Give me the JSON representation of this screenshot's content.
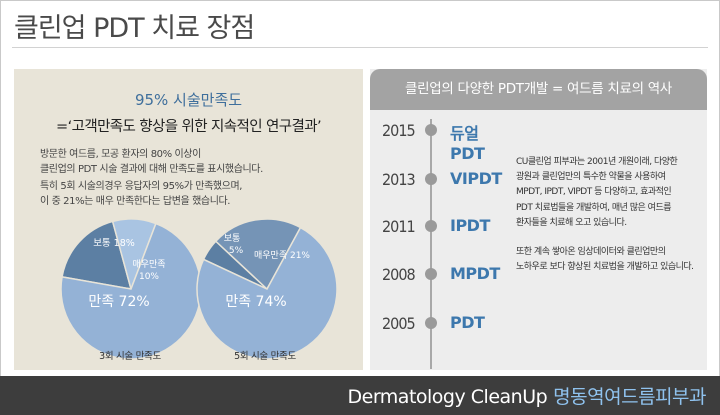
{
  "page": {
    "title": "클린업 PDT 치료 장점"
  },
  "satisfaction": {
    "title": "95% 시술만족도",
    "subtitle": "=‘고객만족도 향상을 위한 지속적인 연구결과’",
    "desc1_line1": "방문한 여드름, 모공 환자의 80% 이상이",
    "desc1_line2": "클린업의 PDT 시술 결과에 대해 만족도를 표시했습니다.",
    "desc2_line1": "특히 5회 시술의경우 응답자의 95%가 만족했으며,",
    "desc2_line2": "이 중 21%는 매우 만족한다는 답변을 했습니다."
  },
  "chart_data": [
    {
      "type": "pie",
      "title": "3회 시술 만족도",
      "slices": [
        {
          "label": "만족",
          "value": 72,
          "color": "#94b2d6"
        },
        {
          "label": "보통",
          "value": 18,
          "color": "#5c7fa3"
        },
        {
          "label": "매우만족",
          "value": 10,
          "color": "#a9c4e2"
        }
      ]
    },
    {
      "type": "pie",
      "title": "5회 시술 만족도",
      "slices": [
        {
          "label": "만족",
          "value": 74,
          "color": "#94b2d6"
        },
        {
          "label": "보통",
          "value": 5,
          "color": "#5c7fa3"
        },
        {
          "label": "매우만족",
          "value": 21,
          "color": "#7594b6"
        }
      ]
    }
  ],
  "pie_labels": {
    "p1_normal": "보통 18%",
    "p1_very_line1": "매우만족",
    "p1_very_line2": "10%",
    "p1_satisfied": "만족 72%",
    "p2_normal_line1": "보통",
    "p2_normal_line2": "5%",
    "p2_very": "매우만족 21%",
    "p2_satisfied": "만족 74%"
  },
  "history": {
    "header": "클린업의 다양한 PDT개발 = 여드름 치료의 역사",
    "timeline": [
      {
        "year": "2015",
        "name": "듀얼PDT"
      },
      {
        "year": "2013",
        "name": "VIPDT"
      },
      {
        "year": "2011",
        "name": "IPDT"
      },
      {
        "year": "2008",
        "name": "MPDT"
      },
      {
        "year": "2005",
        "name": "PDT"
      }
    ],
    "text1_lines": [
      "CU클린업 피부과는 2001년 개원이래, 다양한",
      "광원과 클린업만의 특수한 약물을 사용하여",
      "MPDT, IPDT, VIPDT 등 다양하고, 효과적인",
      "PDT 치료법들을 개발하여, 매년 많은 여드름",
      "환자들을 치료해 오고 있습니다."
    ],
    "text2_lines": [
      "또한 계속 쌓아온 임상데이터와 클린업만의",
      "노하우로 보다 향상된 치료법을 개발하고 있습니다."
    ]
  },
  "footer": {
    "brand_en": "Dermatology CleanUp",
    "brand_ko": "명동역여드름피부과"
  },
  "colors": {
    "accent_blue": "#3d78ad",
    "pie_main": "#94b2d6",
    "panel_beige": "#e8e4d8",
    "footer_bg": "#3d3d3d"
  }
}
